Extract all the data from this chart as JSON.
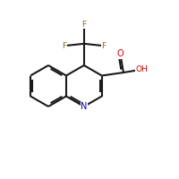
{
  "background": "#ffffff",
  "bond_color": "#1a1a1a",
  "bond_lw": 1.5,
  "dbl_off": 0.01,
  "shrink": 0.18,
  "figsize": [
    2.0,
    2.0
  ],
  "dpi": 100,
  "xlim": [
    0.0,
    1.0
  ],
  "ylim": [
    0.0,
    1.0
  ],
  "atom_labels": {
    "N1": [
      "N",
      "#0000bb",
      7
    ],
    "O1": [
      "O",
      "#cc0000",
      7
    ],
    "O2": [
      "OH",
      "#cc0000",
      6.5
    ],
    "F1": [
      "F",
      "#8B6914",
      6.5
    ],
    "F2": [
      "F",
      "#8B6914",
      6.5
    ],
    "F3": [
      "F",
      "#8B6914",
      6.5
    ]
  }
}
